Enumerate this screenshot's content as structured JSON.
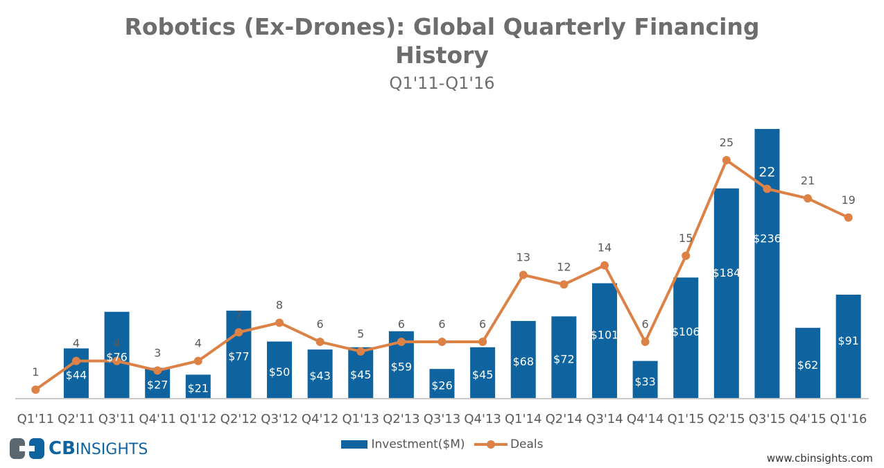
{
  "chart_data": {
    "type": "bar",
    "title_lines": [
      "Robotics (Ex-Drones): Global Quarterly Financing",
      "History"
    ],
    "subtitle": "Q1'11-Q1'16",
    "categories": [
      "Q1'11",
      "Q2'11",
      "Q3'11",
      "Q4'11",
      "Q1'12",
      "Q2'12",
      "Q3'12",
      "Q4'12",
      "Q1'13",
      "Q2'13",
      "Q3'13",
      "Q4'13",
      "Q1'14",
      "Q2'14",
      "Q3'14",
      "Q4'14",
      "Q1'15",
      "Q2'15",
      "Q3'15",
      "Q4'15",
      "Q1'16"
    ],
    "series": [
      {
        "name": "Investment($M)",
        "type": "bar",
        "color": "#0f64a0",
        "values": [
          0,
          44,
          76,
          27,
          21,
          77,
          50,
          43,
          45,
          59,
          26,
          45,
          68,
          72,
          101,
          33,
          106,
          184,
          236,
          62,
          91
        ],
        "labels": [
          "",
          "$44",
          "$76",
          "$27",
          "$21",
          "$77",
          "$50",
          "$43",
          "$45",
          "$59",
          "$26",
          "$45",
          "$68",
          "$72",
          "$101",
          "$33",
          "$106",
          "$184",
          "$236",
          "$62",
          "$91"
        ]
      },
      {
        "name": "Deals",
        "type": "line",
        "color": "#dc8246",
        "values": [
          1,
          4,
          4,
          3,
          4,
          7,
          8,
          6,
          5,
          6,
          6,
          6,
          13,
          12,
          14,
          6,
          15,
          25,
          22,
          21,
          19
        ]
      }
    ],
    "ylim_investment": [
      0,
      236
    ],
    "ylim_deals": [
      0,
      30
    ]
  },
  "legend": {
    "bar_label": "Investment($M)",
    "line_label": "Deals"
  },
  "branding": {
    "logo_bold": "CB",
    "logo_rest": "INSIGHTS",
    "website": "www.cbinsights.com"
  }
}
